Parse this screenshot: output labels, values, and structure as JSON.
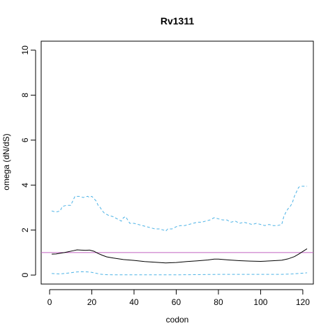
{
  "chart_data": {
    "type": "line",
    "title": "Rv1311",
    "xlabel": "codon",
    "ylabel": "omega (dN/dS)",
    "xlim": [
      -4,
      125
    ],
    "ylim": [
      -0.4,
      10.4
    ],
    "x_ticks": [
      0,
      20,
      40,
      60,
      80,
      100,
      120
    ],
    "y_ticks": [
      0,
      2,
      4,
      6,
      8,
      10
    ],
    "x_tick_labels": [
      "0",
      "20",
      "40",
      "60",
      "80",
      "100",
      "120"
    ],
    "y_tick_labels": [
      "0",
      "2",
      "4",
      "6",
      "8",
      "10"
    ],
    "reference_line": {
      "y": 1,
      "color": "#c060c0"
    },
    "series": [
      {
        "role": "upper-bound",
        "color": "#4db3e6",
        "dash": true,
        "x": [
          1,
          3,
          5,
          6,
          8,
          10,
          11,
          12,
          14,
          16,
          18,
          19,
          20,
          21,
          22,
          23,
          24,
          25,
          26,
          28,
          30,
          32,
          34,
          35,
          36,
          37,
          38,
          40,
          42,
          44,
          46,
          48,
          50,
          52,
          54,
          55,
          56,
          58,
          60,
          62,
          64,
          66,
          68,
          70,
          72,
          74,
          76,
          78,
          80,
          82,
          84,
          86,
          88,
          90,
          92,
          94,
          96,
          98,
          100,
          102,
          104,
          106,
          108,
          110,
          111,
          112,
          113,
          114,
          115,
          116,
          117,
          118,
          119,
          120,
          121,
          122
        ],
        "y": [
          2.85,
          2.8,
          2.85,
          3.05,
          3.1,
          3.1,
          3.3,
          3.5,
          3.5,
          3.45,
          3.5,
          3.45,
          3.5,
          3.4,
          3.3,
          3.1,
          3.0,
          2.85,
          2.75,
          2.65,
          2.6,
          2.5,
          2.4,
          2.55,
          2.6,
          2.45,
          2.3,
          2.3,
          2.25,
          2.2,
          2.15,
          2.1,
          2.05,
          2.05,
          2.0,
          1.95,
          2.05,
          2.05,
          2.15,
          2.2,
          2.2,
          2.25,
          2.3,
          2.35,
          2.35,
          2.4,
          2.45,
          2.55,
          2.5,
          2.45,
          2.45,
          2.35,
          2.4,
          2.3,
          2.35,
          2.3,
          2.25,
          2.3,
          2.25,
          2.2,
          2.25,
          2.2,
          2.2,
          2.25,
          2.6,
          2.8,
          2.95,
          3.05,
          3.2,
          3.5,
          3.7,
          3.9,
          3.95,
          3.95,
          3.95,
          3.95
        ]
      },
      {
        "role": "estimate",
        "color": "#000000",
        "dash": false,
        "x": [
          1,
          3,
          5,
          7,
          9,
          11,
          13,
          15,
          17,
          19,
          21,
          23,
          25,
          27,
          30,
          35,
          40,
          45,
          50,
          55,
          60,
          65,
          70,
          75,
          78,
          80,
          85,
          90,
          95,
          100,
          105,
          110,
          113,
          116,
          118,
          120,
          122
        ],
        "y": [
          0.93,
          0.94,
          0.97,
          1.0,
          1.04,
          1.08,
          1.12,
          1.11,
          1.1,
          1.11,
          1.06,
          0.96,
          0.88,
          0.81,
          0.76,
          0.69,
          0.65,
          0.6,
          0.57,
          0.54,
          0.56,
          0.6,
          0.63,
          0.67,
          0.71,
          0.71,
          0.67,
          0.64,
          0.62,
          0.61,
          0.63,
          0.66,
          0.72,
          0.82,
          0.93,
          1.05,
          1.17
        ]
      },
      {
        "role": "lower-bound",
        "color": "#4db3e6",
        "dash": true,
        "x": [
          1,
          5,
          8,
          10,
          12,
          15,
          18,
          20,
          22,
          24,
          26,
          30,
          40,
          50,
          60,
          70,
          80,
          90,
          100,
          110,
          115,
          118,
          122
        ],
        "y": [
          0.07,
          0.05,
          0.08,
          0.1,
          0.13,
          0.15,
          0.14,
          0.12,
          0.08,
          0.04,
          0.02,
          0.01,
          0.01,
          0.01,
          0.01,
          0.02,
          0.03,
          0.03,
          0.03,
          0.03,
          0.05,
          0.07,
          0.1
        ]
      }
    ]
  }
}
